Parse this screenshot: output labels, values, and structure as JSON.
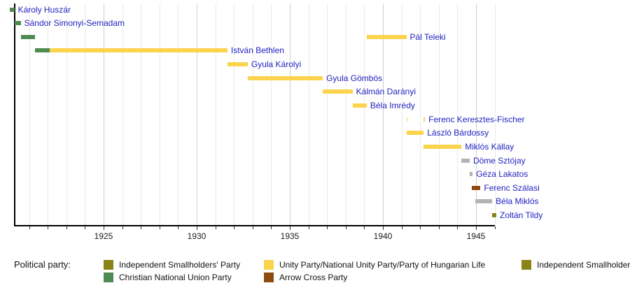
{
  "legend": {
    "title": "Political party:",
    "items": [
      {
        "label": "Independent Smallholders' Party",
        "party": "independent_smallholders",
        "col": 0,
        "row": 0
      },
      {
        "label": "Christian National Union Party",
        "party": "christian_national_union",
        "col": 0,
        "row": 1
      },
      {
        "label": "Unity Party/National Unity Party/Party of Hungarian Life",
        "party": "unity_party",
        "col": 1,
        "row": 0
      },
      {
        "label": "Arrow Cross Party",
        "party": "arrow_cross",
        "col": 1,
        "row": 1
      },
      {
        "label": "Independent Smallholders' Party",
        "party": "independent_smallholders",
        "col": 2,
        "row": 0
      }
    ]
  },
  "chart_data": {
    "type": "bar",
    "subtype": "gantt-timeline",
    "title": "",
    "xlabel": "",
    "ylabel": "",
    "xlim": [
      1919.95,
      1946.35
    ],
    "x_tick_labels": [
      1925,
      1930,
      1935,
      1940,
      1945
    ],
    "x_gridline_years": {
      "from": 1921,
      "to": 1946
    },
    "grid": true,
    "legend_position": "bottom",
    "colors": {
      "independent_smallholders": "#8A8318",
      "christian_national_union": "#4E8A52",
      "unity_party": "#FBD34D",
      "arrow_cross": "#8F4A10",
      "unaffiliated": "#B3B3B3"
    },
    "label_color": "#2222C0",
    "rows": [
      {
        "name": "Károly Huszár",
        "segments": [
          {
            "start": 1919.87,
            "end": 1920.21,
            "party": "christian_national_union"
          }
        ]
      },
      {
        "name": "Sándor Simonyi-Semadam",
        "segments": [
          {
            "start": 1920.21,
            "end": 1920.55,
            "party": "christian_national_union"
          }
        ]
      },
      {
        "name": "Pál Teleki",
        "segments": [
          {
            "start": 1920.55,
            "end": 1921.3,
            "party": "christian_national_union"
          },
          {
            "start": 1939.13,
            "end": 1941.26,
            "party": "unity_party"
          }
        ]
      },
      {
        "name": "István Bethlen",
        "segments": [
          {
            "start": 1921.3,
            "end": 1922.1,
            "party": "christian_national_union"
          },
          {
            "start": 1922.1,
            "end": 1931.65,
            "party": "unity_party"
          }
        ]
      },
      {
        "name": "Gyula Károlyi",
        "segments": [
          {
            "start": 1931.65,
            "end": 1932.74,
            "party": "unity_party"
          }
        ]
      },
      {
        "name": "Gyula Gömbös",
        "segments": [
          {
            "start": 1932.74,
            "end": 1936.77,
            "party": "unity_party"
          }
        ]
      },
      {
        "name": "Kálmán Darányi",
        "segments": [
          {
            "start": 1936.77,
            "end": 1938.37,
            "party": "unity_party"
          }
        ]
      },
      {
        "name": "Béla Imrédy",
        "segments": [
          {
            "start": 1938.37,
            "end": 1939.13,
            "party": "unity_party"
          }
        ]
      },
      {
        "name": "Ferenc Keresztes-Fischer",
        "segments": [
          {
            "start": 1941.26,
            "end": 1941.33,
            "party": "unity_party"
          },
          {
            "start": 1942.19,
            "end": 1942.26,
            "party": "unity_party"
          }
        ]
      },
      {
        "name": "László Bárdossy",
        "segments": [
          {
            "start": 1941.26,
            "end": 1942.19,
            "party": "unity_party"
          }
        ]
      },
      {
        "name": "Miklós Kállay",
        "segments": [
          {
            "start": 1942.19,
            "end": 1944.22,
            "party": "unity_party"
          }
        ]
      },
      {
        "name": "Döme Sztójay",
        "segments": [
          {
            "start": 1944.22,
            "end": 1944.66,
            "party": "unaffiliated"
          }
        ]
      },
      {
        "name": "Géza Lakatos",
        "segments": [
          {
            "start": 1944.66,
            "end": 1944.82,
            "party": "unaffiliated"
          }
        ]
      },
      {
        "name": "Ferenc Szálasi",
        "segments": [
          {
            "start": 1944.79,
            "end": 1945.24,
            "party": "arrow_cross"
          }
        ]
      },
      {
        "name": "Béla Miklós",
        "segments": [
          {
            "start": 1944.98,
            "end": 1945.87,
            "party": "unaffiliated"
          }
        ]
      },
      {
        "name": "Zoltán Tildy",
        "segments": [
          {
            "start": 1945.87,
            "end": 1946.09,
            "party": "independent_smallholders"
          }
        ]
      }
    ]
  }
}
